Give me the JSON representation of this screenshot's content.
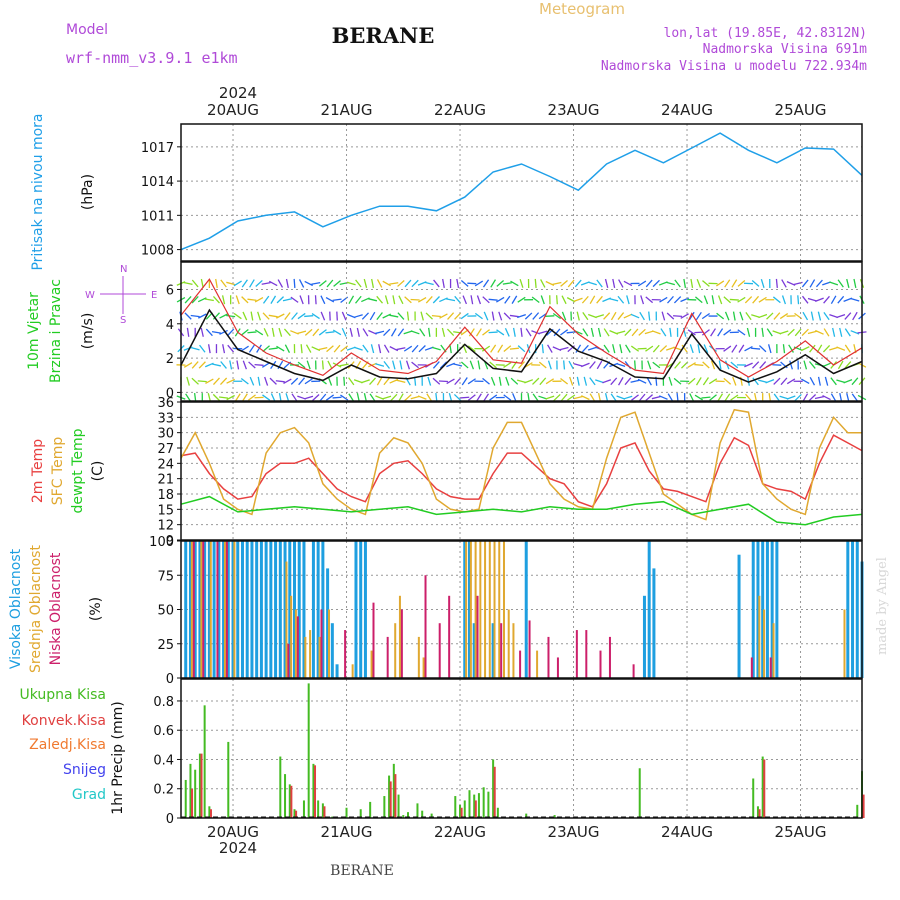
{
  "header": {
    "model_label": "Model",
    "model_name": "wrf-nmm_v3.9.1  e1km",
    "station": "BERANE",
    "meteogram": "Meteogram",
    "lonlat": "lon,lat (19.85E, 42.8312N)",
    "elevation": "Nadmorska Visina 691m",
    "model_elevation": "Nadmorska Visina u modelu 722.934m",
    "footer_station": "BERANE",
    "watermark": "made by Angel"
  },
  "colors": {
    "pressure": "#1f9fe8",
    "wind_speed": "#111111",
    "wind_gust": "#e03030",
    "temp_2m": "#e84040",
    "temp_sfc": "#e0a830",
    "dewpoint": "#22cc22",
    "cloud_high": "#1e9fe0",
    "cloud_mid": "#e0a830",
    "cloud_low": "#cc1f6a",
    "precip_total": "#44bb22",
    "precip_conv": "#e04040",
    "precip_frozen": "#f07a30",
    "snow": "#4444ee",
    "graupel": "#22c8c8",
    "label_purple": "#b04ad8"
  },
  "chart_data": {
    "type": "meteogram",
    "time": {
      "year_label": "2024",
      "date_labels": [
        "20AUG",
        "21AUG",
        "22AUG",
        "23AUG",
        "24AUG",
        "25AUG"
      ],
      "start": "2024-08-19T13",
      "end": "2024-08-25T13",
      "hours": 144
    },
    "panels": [
      {
        "id": "pressure",
        "labels": [
          "Pritisak na nivou mora",
          "(hPa)"
        ],
        "type": "line",
        "ylim": [
          1007,
          1019
        ],
        "yticks": [
          1008,
          1011,
          1014,
          1017
        ],
        "series": [
          {
            "key": "mslp",
            "x": [
              0,
              6,
              12,
              18,
              24,
              30,
              36,
              42,
              48,
              54,
              60,
              66,
              72,
              78,
              84,
              90,
              96,
              102,
              108,
              114,
              120,
              126,
              132,
              138,
              144
            ],
            "y": [
              1008.0,
              1009.0,
              1010.5,
              1011.0,
              1011.3,
              1010.0,
              1011.0,
              1011.8,
              1011.8,
              1011.4,
              1012.6,
              1014.8,
              1015.5,
              1014.4,
              1013.2,
              1015.5,
              1016.7,
              1015.6,
              1016.9,
              1018.2,
              1016.7,
              1015.6,
              1016.9,
              1016.8,
              1014.5
            ]
          }
        ]
      },
      {
        "id": "wind",
        "labels": [
          "10m Vjetar",
          "Brzina i Pravac",
          "(m/s)"
        ],
        "compass": [
          "N",
          "S",
          "W",
          "E"
        ],
        "type": "line",
        "ylim": [
          -0.5,
          7.6
        ],
        "yticks": [
          0,
          2,
          4,
          6
        ],
        "series": [
          {
            "key": "speed",
            "x": [
              0,
              6,
              12,
              18,
              24,
              30,
              36,
              42,
              48,
              54,
              60,
              66,
              72,
              78,
              84,
              90,
              96,
              102,
              108,
              114,
              120,
              126,
              132,
              138,
              144
            ],
            "y": [
              1.6,
              4.8,
              2.5,
              1.8,
              1.1,
              0.7,
              1.6,
              0.9,
              0.8,
              1.1,
              2.8,
              1.4,
              1.2,
              3.7,
              2.4,
              1.8,
              0.9,
              0.8,
              3.4,
              1.3,
              0.6,
              1.2,
              2.2,
              1.1,
              1.8
            ]
          },
          {
            "key": "gust",
            "x": [
              0,
              6,
              12,
              18,
              24,
              30,
              36,
              42,
              48,
              54,
              60,
              66,
              72,
              78,
              84,
              90,
              96,
              102,
              108,
              114,
              120,
              126,
              132,
              138,
              144
            ],
            "y": [
              4.5,
              6.6,
              3.5,
              2.3,
              1.6,
              1.0,
              2.3,
              1.3,
              1.1,
              1.8,
              3.8,
              1.9,
              1.7,
              5.0,
              3.4,
              2.3,
              1.3,
              1.1,
              4.6,
              1.9,
              0.9,
              1.8,
              3.0,
              1.6,
              2.6
            ]
          }
        ]
      },
      {
        "id": "temperature",
        "labels": [
          "2m Temp",
          "SFC Temp",
          "dewpt Temp",
          "(C)"
        ],
        "type": "line",
        "ylim": [
          9,
          36
        ],
        "yticks": [
          9,
          12,
          15,
          18,
          21,
          24,
          27,
          30,
          33,
          36
        ],
        "series": [
          {
            "key": "temp_2m",
            "x": [
              0,
              3,
              6,
              9,
              12,
              15,
              18,
              21,
              24,
              27,
              30,
              33,
              36,
              39,
              42,
              45,
              48,
              51,
              54,
              57,
              60,
              63,
              66,
              69,
              72,
              75,
              78,
              81,
              84,
              87,
              90,
              93,
              96,
              99,
              102,
              105,
              108,
              111,
              114,
              117,
              120,
              123,
              126,
              129,
              132,
              135,
              138,
              141,
              144
            ],
            "y": [
              25.5,
              26,
              22,
              19,
              17,
              17.5,
              22,
              24,
              24,
              25,
              22,
              19,
              17.5,
              16.5,
              22,
              24,
              24.5,
              22,
              19,
              17.5,
              17,
              17,
              22,
              26,
              26,
              23.5,
              21,
              20,
              16.5,
              15.5,
              20,
              27,
              28,
              22.5,
              19,
              18.5,
              17.5,
              16.5,
              24,
              29,
              27.5,
              20,
              19,
              18.5,
              17,
              24,
              29.5,
              28,
              26.5
            ]
          },
          {
            "key": "temp_sfc",
            "x": [
              0,
              3,
              6,
              9,
              12,
              15,
              18,
              21,
              24,
              27,
              30,
              33,
              36,
              39,
              42,
              45,
              48,
              51,
              54,
              57,
              60,
              63,
              66,
              69,
              72,
              75,
              78,
              81,
              84,
              87,
              90,
              93,
              96,
              99,
              102,
              105,
              108,
              111,
              114,
              117,
              120,
              123,
              126,
              129,
              132,
              135,
              138,
              141,
              144
            ],
            "y": [
              25,
              30,
              24,
              17,
              15,
              14,
              26,
              30,
              31,
              28,
              20,
              17,
              15,
              14,
              26,
              29,
              28,
              24,
              17,
              15,
              14.5,
              15,
              27,
              32,
              32,
              26,
              20,
              17,
              15.5,
              15,
              25,
              33,
              34,
              26,
              18,
              16,
              14,
              13,
              28,
              34.5,
              34,
              20,
              17,
              15,
              14,
              27,
              33,
              30,
              30
            ]
          },
          {
            "key": "dewpoint",
            "x": [
              0,
              6,
              12,
              18,
              24,
              30,
              36,
              42,
              48,
              54,
              60,
              66,
              72,
              78,
              84,
              90,
              96,
              102,
              108,
              114,
              120,
              126,
              132,
              138,
              144
            ],
            "y": [
              16,
              17.5,
              14.5,
              15,
              15.5,
              15,
              14.5,
              15,
              15.5,
              14,
              14.5,
              15,
              14.5,
              15.5,
              15,
              15,
              16,
              16.5,
              14,
              15,
              16,
              12.5,
              12,
              13.5,
              14
            ]
          }
        ]
      },
      {
        "id": "clouds",
        "labels": [
          "Visoka Oblacnost",
          "Srednja Oblacnost",
          "Niska Oblacnost",
          "(%)"
        ],
        "type": "bar",
        "ylim": [
          0,
          100
        ],
        "yticks": [
          0,
          25,
          50,
          75,
          100
        ],
        "series": [
          {
            "key": "high",
            "x": [
              1,
              2,
              3,
              4,
              5,
              6,
              7,
              8,
              9,
              10,
              11,
              12,
              13,
              14,
              15,
              16,
              17,
              18,
              19,
              20,
              21,
              22,
              23,
              24,
              25,
              26,
              28,
              29,
              30,
              31,
              32,
              33,
              37,
              38,
              39,
              60,
              61,
              62,
              66,
              73,
              98,
              99,
              100,
              118,
              121,
              122,
              123,
              124,
              125,
              126,
              141,
              142,
              143,
              144
            ],
            "y": [
              100,
              100,
              100,
              100,
              100,
              100,
              100,
              100,
              100,
              100,
              100,
              100,
              100,
              100,
              100,
              100,
              100,
              100,
              100,
              100,
              100,
              100,
              100,
              100,
              100,
              100,
              100,
              100,
              100,
              80,
              40,
              10,
              100,
              100,
              100,
              100,
              100,
              40,
              40,
              100,
              60,
              100,
              80,
              90,
              100,
              100,
              100,
              100,
              100,
              100,
              100,
              100,
              100,
              85
            ]
          },
          {
            "key": "mid",
            "x": [
              2,
              4,
              6,
              9,
              11,
              22,
              23,
              24,
              26,
              27,
              29,
              31,
              36,
              40,
              45,
              46,
              50,
              51,
              60,
              61,
              62,
              63,
              64,
              65,
              66,
              67,
              68,
              69,
              70,
              75,
              122,
              123,
              125,
              140
            ],
            "y": [
              100,
              100,
              100,
              100,
              100,
              85,
              60,
              50,
              30,
              35,
              30,
              50,
              10,
              20,
              40,
              60,
              30,
              15,
              100,
              100,
              100,
              100,
              100,
              100,
              100,
              100,
              100,
              50,
              40,
              20,
              60,
              50,
              40,
              50
            ]
          },
          {
            "key": "low",
            "x": [
              3,
              5,
              8,
              10,
              23,
              25,
              30,
              35,
              41,
              44,
              47,
              52,
              55,
              57,
              63,
              68,
              72,
              74,
              78,
              80,
              84,
              86,
              89,
              91,
              96,
              121,
              125
            ],
            "y": [
              100,
              100,
              100,
              100,
              25,
              45,
              50,
              35,
              55,
              30,
              50,
              75,
              40,
              60,
              60,
              40,
              20,
              42,
              30,
              15,
              35,
              35,
              20,
              30,
              10,
              15,
              15
            ]
          }
        ]
      },
      {
        "id": "precipitation",
        "labels": [
          "Ukupna Kisa",
          "Konvek.Kisa",
          "Zaledj.Kisa",
          "Snijeg",
          "Grad",
          "1hr Precip (mm)"
        ],
        "type": "bar",
        "ylim": [
          0,
          0.95
        ],
        "yticks": [
          0,
          0.2,
          0.4,
          0.6,
          0.8
        ],
        "series": [
          {
            "key": "total",
            "x": [
              1,
              2,
              3,
              4,
              5,
              6,
              10,
              21,
              22,
              23,
              24,
              26,
              27,
              28,
              29,
              30,
              31,
              32,
              35,
              38,
              40,
              43,
              44,
              45,
              46,
              47,
              48,
              50,
              51,
              53,
              58,
              59,
              60,
              61,
              62,
              63,
              64,
              65,
              66,
              67,
              73,
              79,
              97,
              121,
              122,
              123,
              143,
              144
            ],
            "y": [
              0.26,
              0.37,
              0.33,
              0.44,
              0.77,
              0.08,
              0.52,
              0.42,
              0.3,
              0.23,
              0.06,
              0.12,
              0.92,
              0.37,
              0.12,
              0.1,
              0.01,
              0.01,
              0.07,
              0.06,
              0.11,
              0.15,
              0.29,
              0.37,
              0.16,
              0.02,
              0.04,
              0.1,
              0.05,
              0.03,
              0.15,
              0.09,
              0.12,
              0.19,
              0.16,
              0.17,
              0.21,
              0.18,
              0.4,
              0.07,
              0.03,
              0.02,
              0.34,
              0.27,
              0.08,
              0.42,
              0.09,
              0.32
            ]
          },
          {
            "key": "conv",
            "x": [
              2,
              4,
              6,
              23,
              24,
              28,
              30,
              44,
              45,
              59,
              62,
              66,
              122,
              123,
              144
            ],
            "y": [
              0.2,
              0.44,
              0.06,
              0.22,
              0.05,
              0.36,
              0.08,
              0.25,
              0.3,
              0.07,
              0.12,
              0.35,
              0.06,
              0.4,
              0.16
            ]
          }
        ]
      }
    ]
  }
}
